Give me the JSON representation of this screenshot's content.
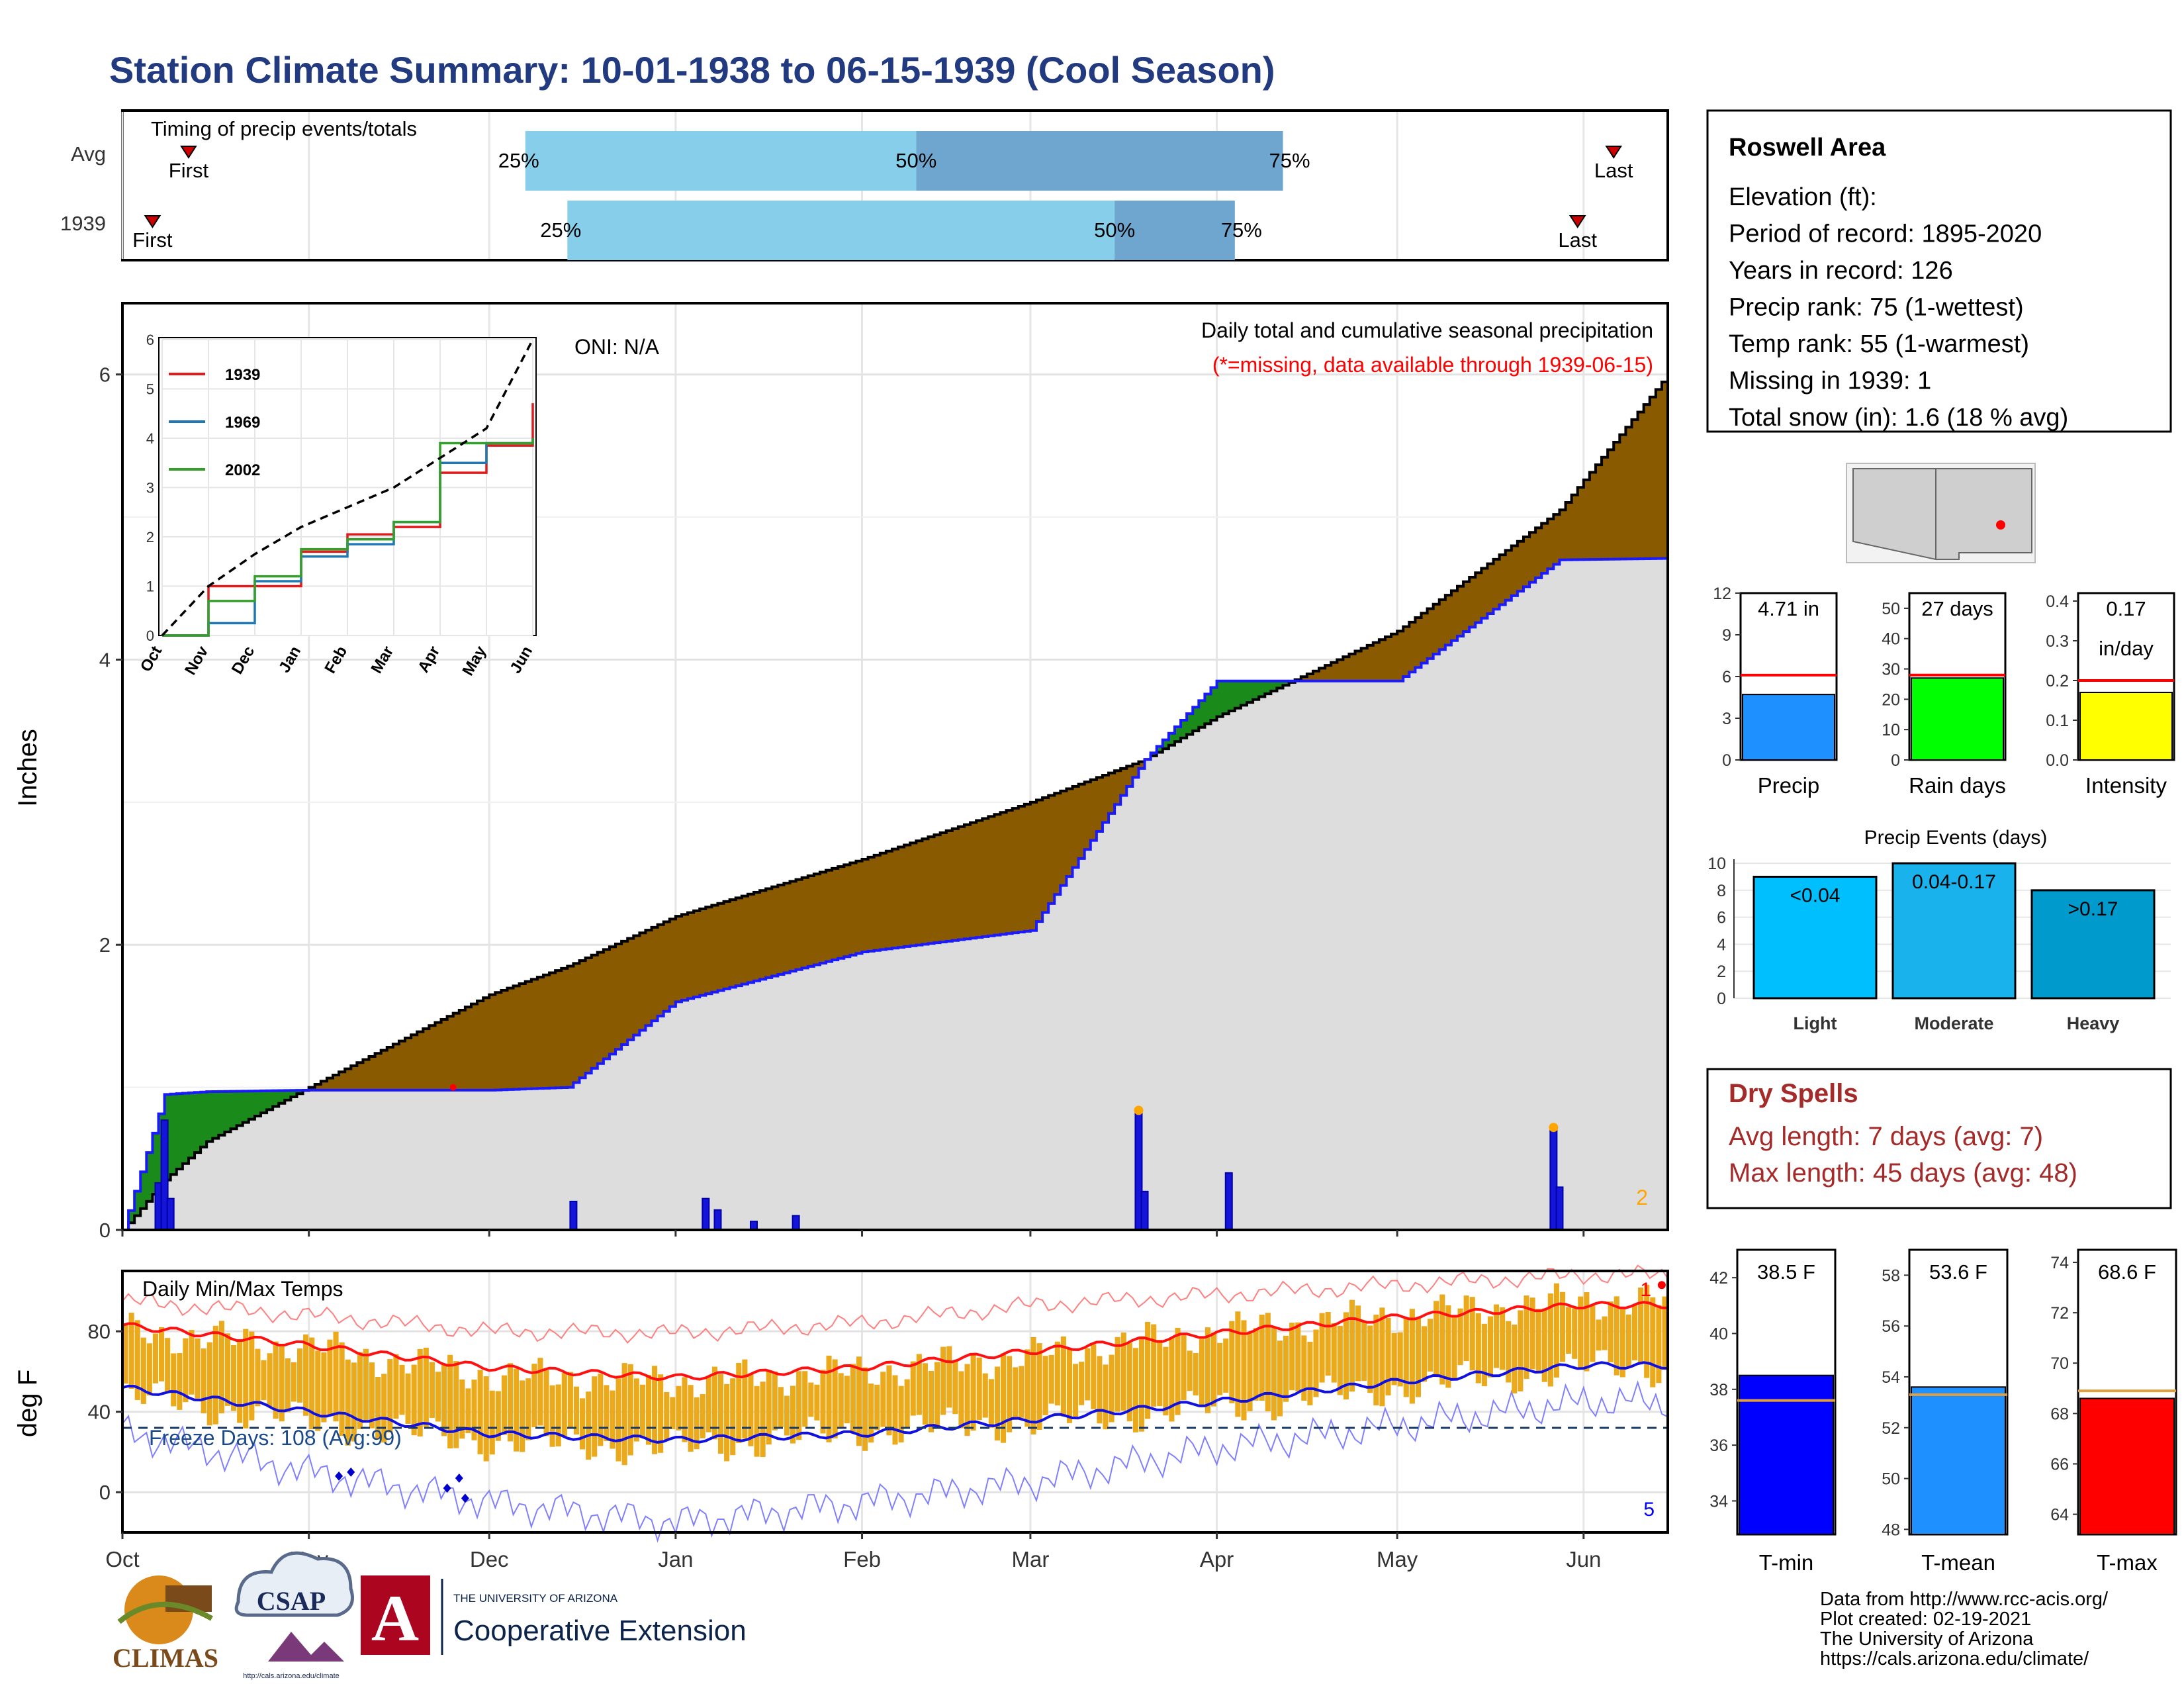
{
  "title": "Station Climate Summary: 10-01-1938 to 06-15-1939 (Cool Season)",
  "colors": {
    "title": "#223a80",
    "cum_fill": "#8a5a00",
    "avg_fill": "#dddddd",
    "above_avg": "#1a8a1a",
    "daily_bar": "#1515d9",
    "q_light": "#87ceeb",
    "q_dark": "#6ea6d0",
    "temp_bar": "#eaaa1c",
    "tmax_line": "#ff1010",
    "tmin_line": "#1010e0",
    "dry": "#a52a2a"
  },
  "timing": {
    "label": "Timing of precip events/totals",
    "rows": [
      {
        "name": "Avg",
        "first_label": "First",
        "last_label": "Last",
        "first_date": "1938-10-12",
        "last_date": "1939-06-06",
        "q25_date": "1938-12-07",
        "q50_date": "1939-02-10",
        "q75_date": "1939-04-12",
        "p25": "25%",
        "p50": "50%",
        "p75": "75%"
      },
      {
        "name": "1939",
        "first_label": "First",
        "last_label": "Last",
        "first_date": "1938-10-06",
        "last_date": "1939-05-31",
        "q25_date": "1938-12-14",
        "q50_date": "1939-03-15",
        "q75_date": "1939-04-04",
        "p25": "25%",
        "p50": "50%",
        "p75": "75%"
      }
    ]
  },
  "precip": {
    "ylabel": "Inches",
    "oni": "ONI: N/A",
    "caption": "Daily total and cumulative seasonal precipitation",
    "missing_note": "(*=missing, data available through 1939-06-15)",
    "count_label": "2",
    "yticks": [
      "0",
      "2",
      "4",
      "6"
    ],
    "months": [
      "Oct",
      "Nov",
      "Dec",
      "Jan",
      "Feb",
      "Mar",
      "Apr",
      "May",
      "Jun"
    ]
  },
  "inset": {
    "legend": [
      "1939",
      "1969",
      "2002"
    ],
    "yticks": [
      "0",
      "1",
      "2",
      "3",
      "4",
      "5",
      "6"
    ],
    "months": [
      "Oct",
      "Nov",
      "Dec",
      "Jan",
      "Feb",
      "Mar",
      "Apr",
      "May",
      "Jun"
    ]
  },
  "temps": {
    "ylabel": "deg F",
    "label": "Daily Min/Max Temps",
    "freeze": "Freeze Days: 108 (Avg:99)",
    "yticks": [
      "0",
      "40",
      "80"
    ],
    "months": [
      "Oct",
      "Nov",
      "Dec",
      "Jan",
      "Feb",
      "Mar",
      "Apr",
      "May",
      "Jun"
    ],
    "count_top": "1",
    "count_bottom": "5"
  },
  "info": {
    "station": "Roswell Area",
    "lines": [
      "Elevation (ft):",
      "Period of record: 1895-2020",
      "Years in record: 126",
      "Precip rank: 75 (1-wettest)",
      "Temp rank: 55 (1-warmest)",
      "Missing in 1939: 1",
      "Total snow (in): 1.6 (18 % avg)"
    ]
  },
  "mini_bars": [
    {
      "name": "Precip",
      "value_label": "4.71 in",
      "yticks": [
        "0",
        "3",
        "6",
        "9",
        "12"
      ],
      "color": "#1e90ff"
    },
    {
      "name": "Rain days",
      "value_label": "27 days",
      "yticks": [
        "0",
        "10",
        "20",
        "30",
        "40",
        "50"
      ],
      "color": "#00ff00"
    },
    {
      "name": "Intensity",
      "value_label": "0.17",
      "value_label2": "in/day",
      "yticks": [
        "0.0",
        "0.1",
        "0.2",
        "0.3",
        "0.4"
      ],
      "color": "#ffff00"
    }
  ],
  "events": {
    "title": "Precip Events (days)",
    "yticks": [
      "0",
      "2",
      "4",
      "6",
      "8",
      "10"
    ],
    "bars": [
      {
        "name": "Light",
        "label": "<0.04",
        "color": "#00bfff"
      },
      {
        "name": "Moderate",
        "label": "0.04-0.17",
        "color": "#1ab2ec"
      },
      {
        "name": "Heavy",
        "label": ">0.17",
        "color": "#009acd"
      }
    ]
  },
  "dry": {
    "title": "Dry Spells",
    "avg": "Avg length: 7 days (avg: 7)",
    "max": "Max length: 45 days (avg: 48)"
  },
  "temp_bars": [
    {
      "name": "T-min",
      "value_label": "38.5 F",
      "yticks": [
        "34",
        "36",
        "38",
        "40",
        "42"
      ],
      "color": "#0000ff"
    },
    {
      "name": "T-mean",
      "value_label": "53.6 F",
      "yticks": [
        "48",
        "50",
        "52",
        "54",
        "56",
        "58"
      ],
      "color": "#1e90ff"
    },
    {
      "name": "T-max",
      "value_label": "68.6 F",
      "yticks": [
        "64",
        "66",
        "68",
        "70",
        "72",
        "74"
      ],
      "color": "#ff0000"
    }
  ],
  "credits": [
    "Data from http://www.rcc-acis.org/",
    "Plot created: 02-19-2021",
    "The University of Arizona",
    "https://cals.arizona.edu/climate/"
  ],
  "logos": {
    "climas": "CLIMAS",
    "csap": "CSAP",
    "csap_url": "http://cals.arizona.edu/climate",
    "ua_small": "THE UNIVERSITY OF ARIZONA",
    "ua_ext": "Cooperative Extension",
    "ua_letter": "A"
  },
  "chart_data": [
    {
      "type": "area",
      "title": "Daily total and cumulative seasonal precipitation",
      "ylabel": "Inches",
      "ylim": [
        0,
        6.5
      ],
      "x_dates": [
        "1938-10-01",
        "1938-10-08",
        "1938-10-15",
        "1938-11-01",
        "1938-12-01",
        "1938-12-14",
        "1939-01-01",
        "1939-02-01",
        "1939-03-01",
        "1939-03-20",
        "1939-04-01",
        "1939-05-01",
        "1939-05-28",
        "1939-06-15"
      ],
      "series": [
        {
          "name": "1939",
          "values": [
            0.0,
            0.95,
            0.97,
            0.98,
            0.98,
            1.0,
            1.6,
            1.95,
            2.1,
            3.3,
            3.85,
            3.85,
            4.7,
            4.71
          ]
        },
        {
          "name": "Avg",
          "values": [
            0.0,
            0.35,
            0.62,
            1.0,
            1.65,
            1.85,
            2.2,
            2.6,
            3.0,
            3.3,
            3.6,
            4.2,
            5.05,
            6.0
          ]
        }
      ],
      "daily_marks": [
        {
          "date": "1938-10-07",
          "value": 0.33
        },
        {
          "date": "1938-10-08",
          "value": 0.77
        },
        {
          "date": "1938-10-09",
          "value": 0.22
        },
        {
          "date": "1938-12-15",
          "value": 0.2
        },
        {
          "date": "1939-01-06",
          "value": 0.22
        },
        {
          "date": "1939-01-08",
          "value": 0.14
        },
        {
          "date": "1939-01-14",
          "value": 0.06
        },
        {
          "date": "1939-01-21",
          "value": 0.1
        },
        {
          "date": "1939-03-19",
          "value": 0.82
        },
        {
          "date": "1939-03-20",
          "value": 0.27
        },
        {
          "date": "1939-04-03",
          "value": 0.4
        },
        {
          "date": "1939-05-27",
          "value": 0.7
        },
        {
          "date": "1939-05-28",
          "value": 0.3
        }
      ],
      "months": [
        "Oct",
        "Nov",
        "Dec",
        "Jan",
        "Feb",
        "Mar",
        "Apr",
        "May",
        "Jun"
      ]
    },
    {
      "type": "line",
      "title": "",
      "ylim": [
        0,
        6
      ],
      "series": [
        {
          "name": "1939",
          "color": "#e31a1c",
          "values": [
            0.0,
            1.0,
            1.0,
            1.7,
            2.05,
            2.2,
            3.3,
            3.85,
            4.71
          ]
        },
        {
          "name": "1969",
          "color": "#1f78b4",
          "values": [
            0.0,
            0.25,
            1.1,
            1.6,
            1.85,
            2.3,
            3.5,
            3.9,
            4.0
          ]
        },
        {
          "name": "2002",
          "color": "#33a02c",
          "values": [
            0.0,
            0.7,
            1.2,
            1.75,
            1.95,
            2.3,
            3.9,
            3.9,
            4.0
          ]
        },
        {
          "name": "Avg",
          "color": "#000000",
          "values": [
            0.0,
            1.0,
            1.65,
            2.2,
            2.6,
            3.0,
            3.6,
            4.2,
            6.0
          ]
        }
      ],
      "categories": [
        "Oct",
        "Nov",
        "Dec",
        "Jan",
        "Feb",
        "Mar",
        "Apr",
        "May",
        "Jun"
      ]
    },
    {
      "type": "line",
      "title": "Daily Min/Max Temps",
      "ylabel": "deg F",
      "ylim": [
        -20,
        110
      ],
      "categories": [
        "Oct",
        "Nov",
        "Dec",
        "Jan",
        "Feb",
        "Mar",
        "Apr",
        "May",
        "Jun"
      ],
      "series": [
        {
          "name": "avg_max",
          "values": [
            83,
            73,
            62,
            57,
            62,
            70,
            79,
            87,
            93
          ]
        },
        {
          "name": "avg_min",
          "values": [
            52,
            40,
            29,
            26,
            29,
            36,
            45,
            55,
            63
          ]
        },
        {
          "name": "record_max",
          "values": [
            95,
            88,
            80,
            79,
            84,
            93,
            98,
            103,
            108
          ]
        },
        {
          "name": "record_min",
          "values": [
            30,
            10,
            -5,
            -15,
            -5,
            5,
            22,
            33,
            45
          ]
        },
        {
          "name": "daily_max",
          "values": [
            80,
            72,
            58,
            55,
            60,
            68,
            80,
            88,
            95
          ]
        },
        {
          "name": "daily_min",
          "values": [
            48,
            35,
            25,
            22,
            30,
            35,
            42,
            52,
            62
          ]
        }
      ],
      "freeze_line": 32
    },
    {
      "type": "bar",
      "title": "",
      "categories": [
        "Precip"
      ],
      "values": [
        4.71
      ],
      "avg": 6.1,
      "ylim": [
        0,
        12
      ]
    },
    {
      "type": "bar",
      "title": "",
      "categories": [
        "Rain days"
      ],
      "values": [
        27
      ],
      "avg": 28,
      "ylim": [
        0,
        55
      ]
    },
    {
      "type": "bar",
      "title": "",
      "categories": [
        "Intensity"
      ],
      "values": [
        0.17
      ],
      "avg": 0.2,
      "ylim": [
        0,
        0.42
      ]
    },
    {
      "type": "bar",
      "title": "Precip Events (days)",
      "categories": [
        "Light",
        "Moderate",
        "Heavy"
      ],
      "values": [
        9,
        10,
        8
      ],
      "ylim": [
        0,
        10.3
      ]
    },
    {
      "type": "bar",
      "title": "",
      "categories": [
        "T-min"
      ],
      "values": [
        38.5
      ],
      "avg": 37.6,
      "ylim": [
        32.8,
        43
      ]
    },
    {
      "type": "bar",
      "title": "",
      "categories": [
        "T-mean"
      ],
      "values": [
        53.6
      ],
      "avg": 53.3,
      "ylim": [
        47.8,
        59
      ]
    },
    {
      "type": "bar",
      "title": "",
      "categories": [
        "T-max"
      ],
      "values": [
        68.6
      ],
      "avg": 68.9,
      "ylim": [
        63.2,
        74.5
      ]
    }
  ]
}
